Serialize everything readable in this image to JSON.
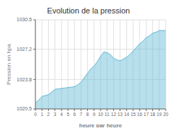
{
  "chart_data": {
    "type": "area",
    "title": "Evolution de la pression",
    "xlabel": "heure par heure",
    "ylabel": "Pression en hpa",
    "x": [
      0,
      0.5,
      1,
      1.5,
      2,
      2.5,
      3,
      3.5,
      4,
      4.5,
      5,
      5.5,
      6,
      6.5,
      7,
      7.5,
      8,
      8.5,
      9,
      9.5,
      10,
      10.5,
      11,
      11.5,
      12,
      12.5,
      13,
      13.5,
      14,
      14.5,
      15,
      15.5,
      16,
      16.5,
      17,
      17.5,
      18,
      18.5,
      19,
      19.5,
      20
    ],
    "values": [
      1021.2,
      1021.5,
      1021.9,
      1022.0,
      1022.1,
      1022.4,
      1022.7,
      1022.75,
      1022.8,
      1022.85,
      1022.9,
      1022.95,
      1023.0,
      1023.2,
      1023.5,
      1024.0,
      1024.5,
      1025.0,
      1025.3,
      1025.8,
      1026.4,
      1026.9,
      1026.8,
      1026.6,
      1026.2,
      1026.0,
      1025.9,
      1026.1,
      1026.3,
      1026.6,
      1027.0,
      1027.4,
      1027.8,
      1028.1,
      1028.5,
      1028.7,
      1029.0,
      1029.1,
      1029.3,
      1029.3,
      1029.3
    ],
    "color": "#60b8d4",
    "xlim": [
      0,
      20
    ],
    "ylim": [
      1020.5,
      1030.5
    ],
    "xticks": [
      0,
      1,
      2,
      3,
      4,
      5,
      6,
      7,
      8,
      9,
      10,
      11,
      12,
      13,
      14,
      15,
      16,
      17,
      18,
      19,
      20
    ],
    "yticks": [
      1020.5,
      1023.8,
      1027.2,
      1030.5
    ],
    "grid": true
  }
}
